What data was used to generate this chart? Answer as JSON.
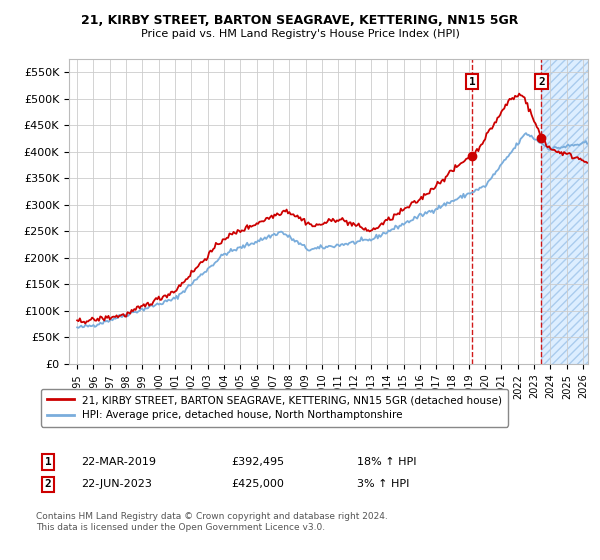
{
  "title1": "21, KIRBY STREET, BARTON SEAGRAVE, KETTERING, NN15 5GR",
  "title2": "Price paid vs. HM Land Registry's House Price Index (HPI)",
  "legend_line1": "21, KIRBY STREET, BARTON SEAGRAVE, KETTERING, NN15 5GR (detached house)",
  "legend_line2": "HPI: Average price, detached house, North Northamptonshire",
  "annotation1_label": "1",
  "annotation1_date": "22-MAR-2019",
  "annotation1_price": "£392,495",
  "annotation1_hpi": "18% ↑ HPI",
  "annotation2_label": "2",
  "annotation2_date": "22-JUN-2023",
  "annotation2_price": "£425,000",
  "annotation2_hpi": "3% ↑ HPI",
  "copyright": "Contains HM Land Registry data © Crown copyright and database right 2024.\nThis data is licensed under the Open Government Licence v3.0.",
  "hpi_color": "#7aaddc",
  "price_color": "#cc0000",
  "annotation_box_color": "#cc0000",
  "ylim": [
    0,
    575000
  ],
  "yticks": [
    0,
    50000,
    100000,
    150000,
    200000,
    250000,
    300000,
    350000,
    400000,
    450000,
    500000,
    550000
  ],
  "ytick_labels": [
    "£0",
    "£50K",
    "£100K",
    "£150K",
    "£200K",
    "£250K",
    "£300K",
    "£350K",
    "£400K",
    "£450K",
    "£500K",
    "£550K"
  ],
  "xlim_left": 1994.5,
  "xlim_right": 2026.3,
  "trans1_x": 2019.2,
  "trans1_y": 392495,
  "trans2_x": 2023.45,
  "trans2_y": 425000,
  "hatch_start": 2023.45
}
